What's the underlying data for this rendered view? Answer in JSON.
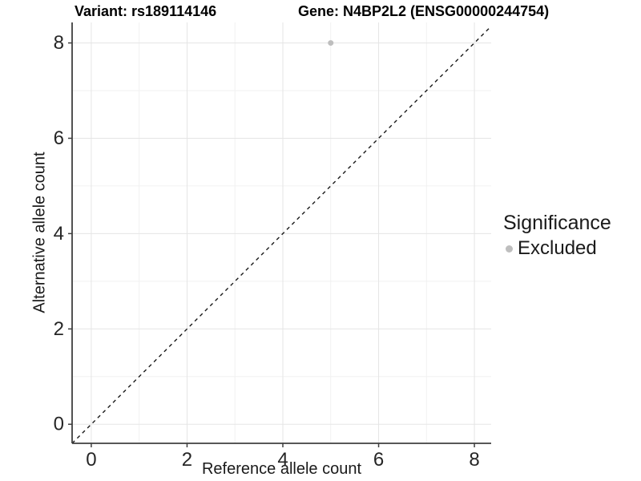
{
  "titles": {
    "variant": "Variant: rs189114146",
    "gene": "Gene: N4BP2L2 (ENSG00000244754)"
  },
  "legend": {
    "title": "Significance",
    "items": [
      {
        "label": "Excluded",
        "color": "#bebebe"
      }
    ]
  },
  "chart_data": {
    "type": "scatter",
    "xlabel": "Reference allele count",
    "ylabel": "Alternative allele count",
    "xlim": [
      -0.4,
      8.35
    ],
    "ylim": [
      -0.4,
      8.43
    ],
    "xticks": [
      0,
      2,
      4,
      6,
      8
    ],
    "yticks": [
      0,
      2,
      4,
      6,
      8
    ],
    "xticks_minor": [
      1,
      3,
      5,
      7
    ],
    "yticks_minor": [
      1,
      3,
      5,
      7
    ],
    "grid": "major+minor",
    "legend_position": "right",
    "series": [
      {
        "name": "Excluded",
        "color": "#bebebe",
        "points": [
          {
            "x": 5,
            "y": 8
          }
        ]
      }
    ],
    "reference_line": {
      "type": "identity",
      "slope": 1,
      "intercept": 0,
      "style": "dashed",
      "color": "#1a1a1a"
    }
  },
  "colors": {
    "point_excluded": "#bebebe",
    "grid_major": "#e5e5e5",
    "grid_minor": "#f1f1f1",
    "axis_line": "#3f3f3f",
    "text": "#1a1a1a",
    "background": "#ffffff"
  }
}
